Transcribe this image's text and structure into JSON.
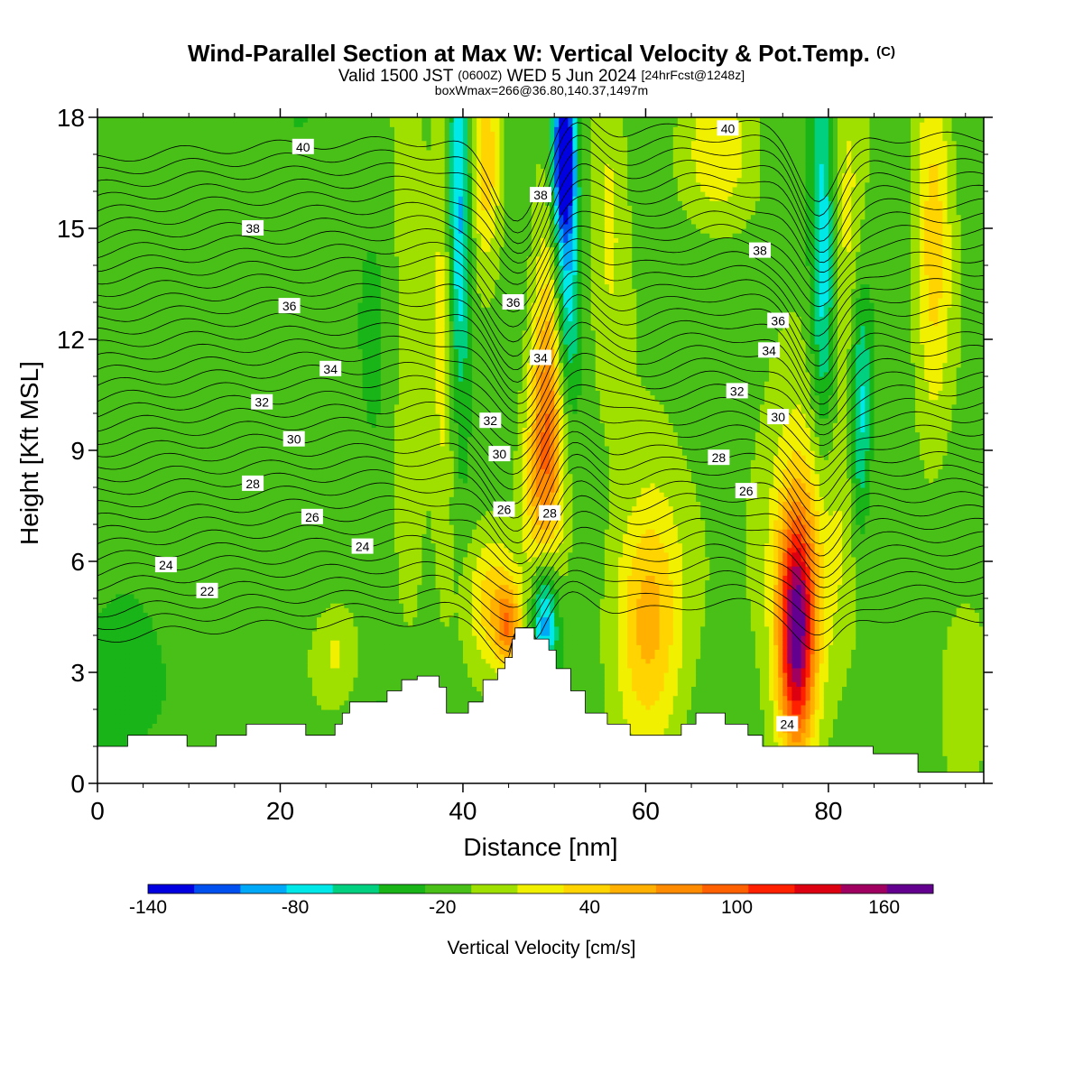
{
  "header": {
    "title_main": "Wind-Parallel Section at Max W: Vertical Velocity & Pot.Temp.",
    "title_mark": "(C)",
    "valid_prefix": "Valid 1500 JST",
    "valid_utc": "(0600Z)",
    "valid_date": "WED 5 Jun 2024",
    "forecast": "[24hrFcst@1248z]",
    "boxinfo": "boxWmax=266@36.80,140.37,1497m"
  },
  "chart_data": {
    "type": "heatmap",
    "xlabel": "Distance [nm]",
    "ylabel": "Height [Kft MSL]",
    "xlim": [
      0,
      97
    ],
    "ylim": [
      0,
      18
    ],
    "x_ticks": [
      0,
      20,
      40,
      60,
      80
    ],
    "y_ticks": [
      0,
      3,
      6,
      9,
      12,
      15,
      18
    ],
    "colorbar": {
      "label": "Vertical Velocity [cm/s]",
      "levels": [
        -140,
        -120,
        -100,
        -80,
        -60,
        -40,
        -20,
        0,
        20,
        40,
        60,
        80,
        100,
        120,
        140,
        160,
        180
      ],
      "tick_labels": [
        "-140",
        "-80",
        "-20",
        "40",
        "100",
        "160"
      ],
      "tick_values": [
        -140,
        -80,
        -20,
        40,
        100,
        160
      ],
      "colors": [
        "#0000e0",
        "#0050f0",
        "#00a8f8",
        "#00e8e8",
        "#00d080",
        "#18b418",
        "#48c018",
        "#a0e000",
        "#f0f000",
        "#ffd400",
        "#ffb000",
        "#ff8c00",
        "#ff6000",
        "#ff2000",
        "#dc0010",
        "#a00060",
        "#640090"
      ]
    },
    "vertical_velocity_features": [
      {
        "x": 76.5,
        "z": 4.0,
        "w": 176,
        "sx": 1.4,
        "sz": 2.2
      },
      {
        "x": 77.5,
        "z": 6.5,
        "w": 60,
        "sx": 3.5,
        "sz": 3.0
      },
      {
        "x": 49.5,
        "z": 11.0,
        "w": 95,
        "sx": 1.4,
        "sz": 3.0
      },
      {
        "x": 48.5,
        "z": 8.0,
        "w": 55,
        "sx": 1.5,
        "sz": 2.0
      },
      {
        "x": 51.0,
        "z": 17.0,
        "w": -140,
        "sx": 0.8,
        "sz": 1.3
      },
      {
        "x": 51.3,
        "z": 14.0,
        "w": -85,
        "sx": 1.0,
        "sz": 3.0
      },
      {
        "x": 49.0,
        "z": 4.5,
        "w": -95,
        "sx": 1.0,
        "sz": 1.2
      },
      {
        "x": 39.5,
        "z": 15.0,
        "w": -85,
        "sx": 0.9,
        "sz": 3.5
      },
      {
        "x": 42.5,
        "z": 17.0,
        "w": 70,
        "sx": 1.2,
        "sz": 2.0
      },
      {
        "x": 38.0,
        "z": 12.5,
        "w": 45,
        "sx": 1.0,
        "sz": 5.0
      },
      {
        "x": 43.0,
        "z": 5.0,
        "w": 65,
        "sx": 2.0,
        "sz": 1.4
      },
      {
        "x": 45.0,
        "z": 4.2,
        "w": 80,
        "sx": 1.0,
        "sz": 0.8
      },
      {
        "x": 60.0,
        "z": 4.5,
        "w": 55,
        "sx": 2.5,
        "sz": 2.2
      },
      {
        "x": 61.0,
        "z": 5.0,
        "w": 30,
        "sx": 3.0,
        "sz": 3.5
      },
      {
        "x": 79.5,
        "z": 14.0,
        "w": -70,
        "sx": 1.0,
        "sz": 4.0
      },
      {
        "x": 83.5,
        "z": 10.0,
        "w": -65,
        "sx": 0.8,
        "sz": 2.5
      },
      {
        "x": 91.5,
        "z": 15.0,
        "w": 60,
        "sx": 1.5,
        "sz": 4.0
      },
      {
        "x": 82.0,
        "z": 15.0,
        "w": 40,
        "sx": 1.5,
        "sz": 3.5
      },
      {
        "x": 68.0,
        "z": 17.0,
        "w": 45,
        "sx": 3.0,
        "sz": 1.5
      },
      {
        "x": 56.0,
        "z": 16.0,
        "w": 35,
        "sx": 1.5,
        "sz": 4.0
      },
      {
        "x": 8.0,
        "z": 11.0,
        "w": 10,
        "sx": 4.0,
        "sz": 4.0
      },
      {
        "x": 26.0,
        "z": 3.5,
        "w": 35,
        "sx": 2.0,
        "sz": 1.0
      },
      {
        "x": 34.0,
        "z": 12.0,
        "w": 30,
        "sx": 1.5,
        "sz": 6.0
      },
      {
        "x": 31.0,
        "z": 7.0,
        "w": -10,
        "sx": 2.0,
        "sz": 6.0
      },
      {
        "x": 2.0,
        "z": 2.5,
        "w": -25,
        "sx": 4.0,
        "sz": 1.5
      },
      {
        "x": 95.0,
        "z": 3.0,
        "w": 25,
        "sx": 2.0,
        "sz": 2.0
      },
      {
        "x": 15.0,
        "z": 15.5,
        "w": -5,
        "sx": 10.0,
        "sz": 3.0
      }
    ],
    "terrain_profile": [
      [
        0,
        1.0
      ],
      [
        3.3,
        1.3
      ],
      [
        9.8,
        1.0
      ],
      [
        13.0,
        1.3
      ],
      [
        16.3,
        1.6
      ],
      [
        22.8,
        1.3
      ],
      [
        26.0,
        1.6
      ],
      [
        26.8,
        1.9
      ],
      [
        27.6,
        2.2
      ],
      [
        31.7,
        2.5
      ],
      [
        33.3,
        2.8
      ],
      [
        35.0,
        2.9
      ],
      [
        37.4,
        2.6
      ],
      [
        38.2,
        1.9
      ],
      [
        40.6,
        2.2
      ],
      [
        42.2,
        2.8
      ],
      [
        43.8,
        3.1
      ],
      [
        44.6,
        3.4
      ],
      [
        45.4,
        3.9
      ],
      [
        45.7,
        4.2
      ],
      [
        47.8,
        3.9
      ],
      [
        49.4,
        3.6
      ],
      [
        50.2,
        3.1
      ],
      [
        51.8,
        2.5
      ],
      [
        53.4,
        1.9
      ],
      [
        55.8,
        1.6
      ],
      [
        58.3,
        1.3
      ],
      [
        62.3,
        1.3
      ],
      [
        63.9,
        1.6
      ],
      [
        65.5,
        1.9
      ],
      [
        68.7,
        1.6
      ],
      [
        71.2,
        1.3
      ],
      [
        72.8,
        1.0
      ],
      [
        77.6,
        1.0
      ],
      [
        79.3,
        1.0
      ],
      [
        84.9,
        0.8
      ],
      [
        89.8,
        0.3
      ],
      [
        95.5,
        0.3
      ],
      [
        97,
        0.3
      ]
    ],
    "potential_temperature_contour_labels": [
      {
        "text": "40",
        "x": 22.5,
        "y": 17.2
      },
      {
        "text": "38",
        "x": 17.0,
        "y": 15.0
      },
      {
        "text": "36",
        "x": 21.0,
        "y": 12.9
      },
      {
        "text": "34",
        "x": 25.5,
        "y": 11.2
      },
      {
        "text": "32",
        "x": 18.0,
        "y": 10.3
      },
      {
        "text": "30",
        "x": 21.5,
        "y": 9.3
      },
      {
        "text": "28",
        "x": 17.0,
        "y": 8.1
      },
      {
        "text": "26",
        "x": 23.5,
        "y": 7.2
      },
      {
        "text": "24",
        "x": 29.0,
        "y": 6.4
      },
      {
        "text": "24",
        "x": 7.5,
        "y": 5.9
      },
      {
        "text": "22",
        "x": 12.0,
        "y": 5.2
      },
      {
        "text": "38",
        "x": 48.5,
        "y": 15.9
      },
      {
        "text": "36",
        "x": 45.5,
        "y": 13.0
      },
      {
        "text": "34",
        "x": 48.5,
        "y": 11.5
      },
      {
        "text": "32",
        "x": 43.0,
        "y": 9.8
      },
      {
        "text": "30",
        "x": 44.0,
        "y": 8.9
      },
      {
        "text": "28",
        "x": 49.5,
        "y": 7.3
      },
      {
        "text": "26",
        "x": 44.5,
        "y": 7.4
      },
      {
        "text": "40",
        "x": 69.0,
        "y": 17.7
      },
      {
        "text": "38",
        "x": 72.5,
        "y": 14.4
      },
      {
        "text": "36",
        "x": 74.5,
        "y": 12.5
      },
      {
        "text": "34",
        "x": 73.5,
        "y": 11.7
      },
      {
        "text": "32",
        "x": 70.0,
        "y": 10.6
      },
      {
        "text": "30",
        "x": 74.5,
        "y": 9.9
      },
      {
        "text": "28",
        "x": 68.0,
        "y": 8.8
      },
      {
        "text": "26",
        "x": 71.0,
        "y": 7.9
      },
      {
        "text": "24",
        "x": 75.5,
        "y": 1.6
      }
    ]
  }
}
